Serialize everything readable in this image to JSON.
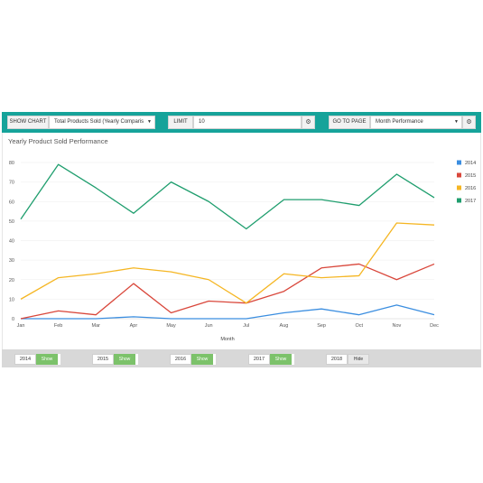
{
  "toolbar": {
    "show_chart_label": "SHOW CHART",
    "chart_select_value": "Total Products Sold (Yearly Comparis",
    "limit_label": "LIMIT",
    "limit_value": "10",
    "go_to_page_label": "GO TO PAGE",
    "page_select_value": "Month Performance",
    "gear_icon": "gear-icon",
    "caret_icon": "caret-down-icon"
  },
  "colors": {
    "toolbar": "#16a39a",
    "s2014": "#3b8ee0",
    "s2015": "#d9473b",
    "s2016": "#f5b623",
    "s2017": "#1f9e6e",
    "show_button": "#7cc26a"
  },
  "chart_data": {
    "type": "line",
    "title": "Yearly Product Sold Performance",
    "xlabel": "Month",
    "ylabel": "",
    "categories": [
      "Jan",
      "Feb",
      "Mar",
      "Apr",
      "May",
      "Jun",
      "Jul",
      "Aug",
      "Sep",
      "Oct",
      "Nov",
      "Dec"
    ],
    "ylim": [
      0,
      80
    ],
    "yticks": [
      "0",
      "10",
      "20",
      "30",
      "40",
      "50",
      "60",
      "70",
      "80"
    ],
    "grid": true,
    "legend_position": "right",
    "series": [
      {
        "name": "2014",
        "color": "#3b8ee0",
        "values": [
          0,
          0,
          0,
          1,
          0,
          0,
          0,
          3,
          5,
          2,
          7,
          2
        ]
      },
      {
        "name": "2015",
        "color": "#d9473b",
        "values": [
          0,
          4,
          2,
          18,
          3,
          9,
          8,
          14,
          26,
          28,
          20,
          28
        ]
      },
      {
        "name": "2016",
        "color": "#f5b623",
        "values": [
          10,
          21,
          23,
          26,
          24,
          20,
          8,
          23,
          21,
          22,
          49,
          48
        ]
      },
      {
        "name": "2017",
        "color": "#1f9e6e",
        "values": [
          51,
          79,
          67,
          54,
          70,
          60,
          46,
          61,
          61,
          58,
          74,
          62
        ]
      }
    ]
  },
  "year_controls": [
    {
      "year": "2014",
      "button": "Show",
      "state": "on"
    },
    {
      "year": "2015",
      "button": "Show",
      "state": "on"
    },
    {
      "year": "2016",
      "button": "Show",
      "state": "on"
    },
    {
      "year": "2017",
      "button": "Show",
      "state": "on"
    },
    {
      "year": "2018",
      "button": "Hide",
      "state": "off"
    }
  ]
}
